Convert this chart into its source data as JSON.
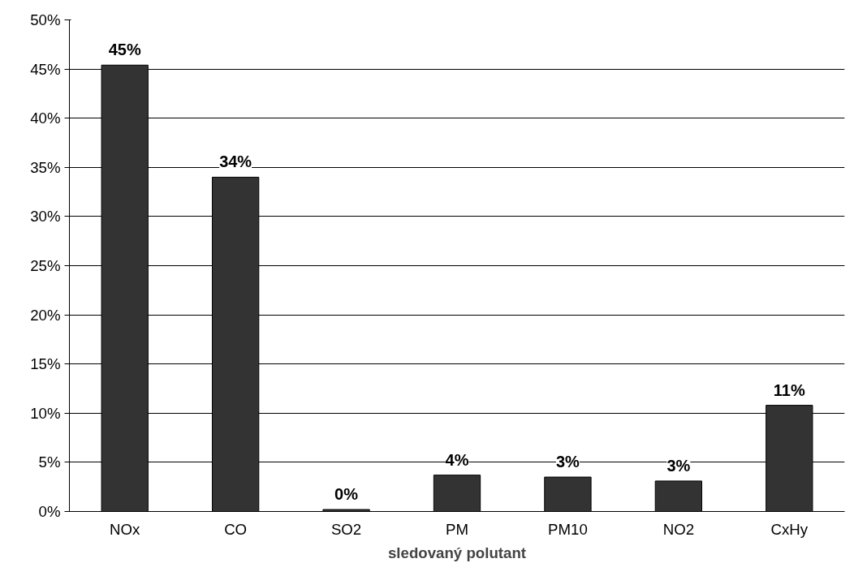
{
  "chart_data": {
    "type": "bar",
    "xlabel": "sledovaný polutant",
    "categories": [
      "NOx",
      "CO",
      "SO2",
      "PM",
      "PM10",
      "NO2",
      "CxHy"
    ],
    "values": [
      45.4,
      34.0,
      0.2,
      3.7,
      3.5,
      3.1,
      10.8
    ],
    "value_labels": [
      "45%",
      "34%",
      "0%",
      "4%",
      "3%",
      "3%",
      "11%"
    ],
    "color": "#333333",
    "ylim": [
      0,
      50
    ],
    "yticks": [
      {
        "value": 0,
        "label": "0%"
      },
      {
        "value": 5,
        "label": "5%"
      },
      {
        "value": 10,
        "label": "10%"
      },
      {
        "value": 15,
        "label": "15%"
      },
      {
        "value": 20,
        "label": "20%"
      },
      {
        "value": 25,
        "label": "25%"
      },
      {
        "value": 30,
        "label": "30%"
      },
      {
        "value": 35,
        "label": "35%"
      },
      {
        "value": 40,
        "label": "40%"
      },
      {
        "value": 45,
        "label": "45%"
      },
      {
        "value": 50,
        "label": "50%"
      }
    ],
    "grid": "y"
  }
}
